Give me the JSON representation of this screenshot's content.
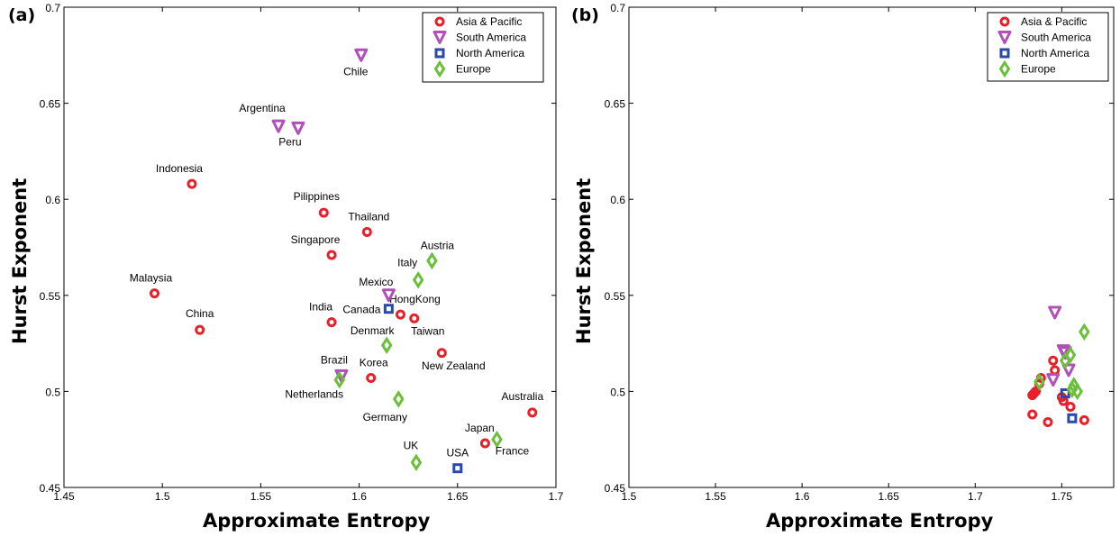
{
  "chart_data": [
    {
      "panel": "(a)",
      "type": "scatter",
      "xlabel": "Approximate Entropy",
      "ylabel": "Hurst Exponent",
      "xlim": [
        1.45,
        1.7
      ],
      "ylim": [
        0.45,
        0.7
      ],
      "xticks": [
        "1.45",
        "1.5",
        "1.55",
        "1.6",
        "1.65",
        "1.7"
      ],
      "yticks": [
        "0.45",
        "0.5",
        "0.55",
        "0.6",
        "0.65",
        "0.7"
      ],
      "legend_position": "top-right",
      "grid": false,
      "series": [
        {
          "name": "Asia & Pacific",
          "marker": "circle",
          "color": "#e8202a",
          "points": [
            {
              "label": "Indonesia",
              "x": 1.515,
              "y": 0.608
            },
            {
              "label": "Pilippines",
              "x": 1.582,
              "y": 0.593
            },
            {
              "label": "Thailand",
              "x": 1.604,
              "y": 0.583
            },
            {
              "label": "Singapore",
              "x": 1.586,
              "y": 0.571
            },
            {
              "label": "Malaysia",
              "x": 1.496,
              "y": 0.551
            },
            {
              "label": "China",
              "x": 1.519,
              "y": 0.532
            },
            {
              "label": "India",
              "x": 1.586,
              "y": 0.536
            },
            {
              "label": "HongKong",
              "x": 1.621,
              "y": 0.54
            },
            {
              "label": "Taiwan",
              "x": 1.628,
              "y": 0.538
            },
            {
              "label": "New Zealand",
              "x": 1.642,
              "y": 0.52
            },
            {
              "label": "Korea",
              "x": 1.606,
              "y": 0.507
            },
            {
              "label": "Australia",
              "x": 1.688,
              "y": 0.489
            },
            {
              "label": "Japan",
              "x": 1.664,
              "y": 0.473
            }
          ]
        },
        {
          "name": "South America",
          "marker": "triangle-down",
          "color": "#b050b8",
          "points": [
            {
              "label": "Chile",
              "x": 1.601,
              "y": 0.675
            },
            {
              "label": "Argentina",
              "x": 1.559,
              "y": 0.638
            },
            {
              "label": "Peru",
              "x": 1.569,
              "y": 0.637
            },
            {
              "label": "Mexico",
              "x": 1.615,
              "y": 0.55
            },
            {
              "label": "Brazil",
              "x": 1.591,
              "y": 0.508
            }
          ]
        },
        {
          "name": "North America",
          "marker": "square",
          "color": "#2a4aa8",
          "points": [
            {
              "label": "Canada",
              "x": 1.615,
              "y": 0.543
            },
            {
              "label": "USA",
              "x": 1.65,
              "y": 0.46
            }
          ]
        },
        {
          "name": "Europe",
          "marker": "diamond",
          "color": "#6cbf3a",
          "points": [
            {
              "label": "Austria",
              "x": 1.637,
              "y": 0.568
            },
            {
              "label": "Italy",
              "x": 1.63,
              "y": 0.558
            },
            {
              "label": "Denmark",
              "x": 1.614,
              "y": 0.524
            },
            {
              "label": "Netherlands",
              "x": 1.59,
              "y": 0.506
            },
            {
              "label": "Germany",
              "x": 1.62,
              "y": 0.496
            },
            {
              "label": "France",
              "x": 1.67,
              "y": 0.475
            },
            {
              "label": "UK",
              "x": 1.629,
              "y": 0.463
            }
          ]
        }
      ]
    },
    {
      "panel": "(b)",
      "type": "scatter",
      "xlabel": "Approximate Entropy",
      "ylabel": "Hurst Exponent",
      "xlim": [
        1.5,
        1.78
      ],
      "ylim": [
        0.45,
        0.7
      ],
      "xticks": [
        "1.5",
        "1.55",
        "1.6",
        "1.65",
        "1.7",
        "1.75"
      ],
      "yticks": [
        "0.45",
        "0.5",
        "0.55",
        "0.6",
        "0.65",
        "0.7"
      ],
      "legend_position": "top-right",
      "grid": false,
      "series": [
        {
          "name": "Asia & Pacific",
          "marker": "circle",
          "color": "#e8202a",
          "points": [
            {
              "x": 1.733,
              "y": 0.498
            },
            {
              "x": 1.734,
              "y": 0.499
            },
            {
              "x": 1.735,
              "y": 0.5
            },
            {
              "x": 1.737,
              "y": 0.504
            },
            {
              "x": 1.738,
              "y": 0.507
            },
            {
              "x": 1.745,
              "y": 0.516
            },
            {
              "x": 1.746,
              "y": 0.511
            },
            {
              "x": 1.75,
              "y": 0.497
            },
            {
              "x": 1.751,
              "y": 0.495
            },
            {
              "x": 1.755,
              "y": 0.492
            },
            {
              "x": 1.733,
              "y": 0.488
            },
            {
              "x": 1.742,
              "y": 0.484
            },
            {
              "x": 1.763,
              "y": 0.485
            }
          ]
        },
        {
          "name": "South America",
          "marker": "triangle-down",
          "color": "#b050b8",
          "points": [
            {
              "x": 1.746,
              "y": 0.541
            },
            {
              "x": 1.751,
              "y": 0.521
            },
            {
              "x": 1.752,
              "y": 0.52
            },
            {
              "x": 1.754,
              "y": 0.511
            },
            {
              "x": 1.745,
              "y": 0.506
            }
          ]
        },
        {
          "name": "North America",
          "marker": "square",
          "color": "#2a4aa8",
          "points": [
            {
              "x": 1.752,
              "y": 0.499
            },
            {
              "x": 1.756,
              "y": 0.486
            }
          ]
        },
        {
          "name": "Europe",
          "marker": "diamond",
          "color": "#6cbf3a",
          "points": [
            {
              "x": 1.763,
              "y": 0.531
            },
            {
              "x": 1.755,
              "y": 0.519
            },
            {
              "x": 1.752,
              "y": 0.516
            },
            {
              "x": 1.737,
              "y": 0.505
            },
            {
              "x": 1.757,
              "y": 0.503
            },
            {
              "x": 1.756,
              "y": 0.501
            },
            {
              "x": 1.759,
              "y": 0.5
            }
          ]
        }
      ]
    }
  ]
}
